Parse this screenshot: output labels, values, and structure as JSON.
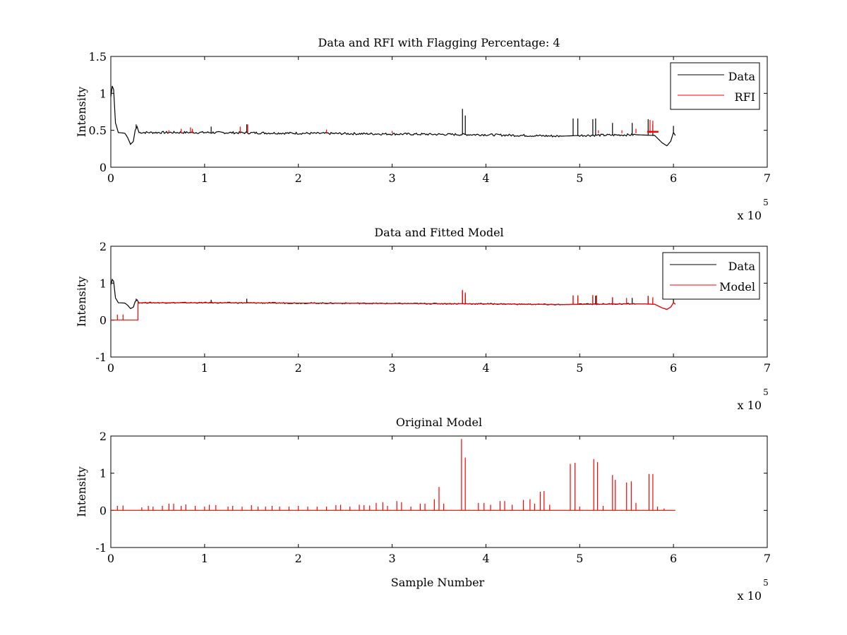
{
  "figure": {
    "background": "#ffffff",
    "colors": {
      "data": "#000000",
      "red": "#ff0000",
      "axes": "#000000"
    }
  },
  "chart_data": [
    {
      "type": "line",
      "title": "Data and RFI with Flagging Percentage: 4",
      "xlabel": "",
      "ylabel": "Intensity",
      "xlim": [
        0,
        700000
      ],
      "ylim": [
        0,
        1.5
      ],
      "x_ticks": [
        "0",
        "1",
        "2",
        "3",
        "4",
        "5",
        "6",
        "7"
      ],
      "y_ticks": [
        "0",
        "0.5",
        "1",
        "1.5"
      ],
      "x_multiplier": {
        "base": "x 10",
        "exponent": "5"
      },
      "grid": false,
      "legend": {
        "position": "top-right",
        "entries": [
          "Data",
          "RFI"
        ]
      },
      "series": [
        {
          "name": "Data",
          "color": "#000000",
          "baseline": [
            [
              0,
              0.95
            ],
            [
              1500,
              1.1
            ],
            [
              3000,
              1.05
            ],
            [
              5000,
              0.6
            ],
            [
              8000,
              0.47
            ],
            [
              15000,
              0.46
            ],
            [
              18000,
              0.4
            ],
            [
              21000,
              0.31
            ],
            [
              24000,
              0.35
            ],
            [
              26000,
              0.5
            ],
            [
              28000,
              0.55
            ],
            [
              30000,
              0.47
            ],
            [
              100000,
              0.47
            ],
            [
              200000,
              0.46
            ],
            [
              300000,
              0.45
            ],
            [
              400000,
              0.44
            ],
            [
              480000,
              0.42
            ],
            [
              500000,
              0.43
            ],
            [
              560000,
              0.44
            ],
            [
              580000,
              0.43
            ],
            [
              588000,
              0.33
            ],
            [
              593000,
              0.29
            ],
            [
              597000,
              0.35
            ],
            [
              600000,
              0.47
            ],
            [
              602000,
              0.43
            ]
          ],
          "spikes": [
            [
              27000,
              0.58
            ],
            [
              107000,
              0.55
            ],
            [
              145000,
              0.58
            ],
            [
              375000,
              0.79
            ],
            [
              378000,
              0.7
            ],
            [
              493000,
              0.66
            ],
            [
              498000,
              0.66
            ],
            [
              514000,
              0.65
            ],
            [
              517000,
              0.66
            ],
            [
              535000,
              0.6
            ],
            [
              556000,
              0.6
            ],
            [
              573000,
              0.65
            ],
            [
              578000,
              0.58
            ],
            [
              600000,
              0.56
            ]
          ]
        },
        {
          "name": "RFI",
          "color": "#ff0000",
          "spikes": [
            [
              62000,
              0.5
            ],
            [
              75000,
              0.52
            ],
            [
              85000,
              0.54
            ],
            [
              87000,
              0.52
            ],
            [
              138000,
              0.55
            ],
            [
              146000,
              0.58
            ],
            [
              230000,
              0.51
            ],
            [
              300000,
              0.49
            ],
            [
              520000,
              0.5
            ],
            [
              545000,
              0.5
            ],
            [
              560000,
              0.52
            ],
            [
              575000,
              0.64
            ],
            [
              578000,
              0.63
            ]
          ],
          "segments": [
            [
              572000,
              584000,
              0.48
            ]
          ]
        }
      ]
    },
    {
      "type": "line",
      "title": "Data and Fitted Model",
      "xlabel": "",
      "ylabel": "Intensity",
      "xlim": [
        0,
        700000
      ],
      "ylim": [
        -1,
        2
      ],
      "x_ticks": [
        "0",
        "1",
        "2",
        "3",
        "4",
        "5",
        "6",
        "7"
      ],
      "y_ticks": [
        "-1",
        "0",
        "1",
        "2"
      ],
      "x_multiplier": {
        "base": "x 10",
        "exponent": "5"
      },
      "grid": false,
      "legend": {
        "position": "top-right",
        "entries": [
          "Data",
          "Model"
        ]
      },
      "series": [
        {
          "name": "Data",
          "color": "#000000",
          "baseline": [
            [
              0,
              0.95
            ],
            [
              1500,
              1.1
            ],
            [
              3000,
              1.05
            ],
            [
              5000,
              0.6
            ],
            [
              8000,
              0.47
            ],
            [
              15000,
              0.46
            ],
            [
              18000,
              0.4
            ],
            [
              21000,
              0.31
            ],
            [
              24000,
              0.35
            ],
            [
              26000,
              0.5
            ],
            [
              28000,
              0.55
            ],
            [
              30000,
              0.47
            ],
            [
              100000,
              0.47
            ],
            [
              200000,
              0.46
            ],
            [
              300000,
              0.45
            ],
            [
              400000,
              0.44
            ],
            [
              480000,
              0.42
            ],
            [
              500000,
              0.43
            ],
            [
              560000,
              0.44
            ],
            [
              580000,
              0.43
            ],
            [
              588000,
              0.33
            ],
            [
              593000,
              0.29
            ],
            [
              597000,
              0.35
            ],
            [
              600000,
              0.47
            ],
            [
              602000,
              0.43
            ]
          ],
          "spikes": [
            [
              27000,
              0.58
            ],
            [
              107000,
              0.55
            ],
            [
              145000,
              0.58
            ],
            [
              375000,
              0.79
            ],
            [
              378000,
              0.7
            ],
            [
              493000,
              0.66
            ],
            [
              498000,
              0.66
            ],
            [
              514000,
              0.65
            ],
            [
              517000,
              0.66
            ],
            [
              535000,
              0.6
            ],
            [
              556000,
              0.6
            ],
            [
              573000,
              0.65
            ],
            [
              578000,
              0.58
            ],
            [
              600000,
              0.56
            ]
          ]
        },
        {
          "name": "Model",
          "color": "#ff0000",
          "baseline": [
            [
              0,
              0.0
            ],
            [
              29000,
              0.0
            ],
            [
              29000,
              0.47
            ],
            [
              100000,
              0.47
            ],
            [
              200000,
              0.46
            ],
            [
              300000,
              0.45
            ],
            [
              400000,
              0.44
            ],
            [
              480000,
              0.42
            ],
            [
              560000,
              0.44
            ],
            [
              580000,
              0.43
            ],
            [
              588000,
              0.33
            ],
            [
              593000,
              0.29
            ],
            [
              597000,
              0.35
            ],
            [
              600000,
              0.47
            ],
            [
              602000,
              0.43
            ]
          ],
          "spikes": [
            [
              7000,
              0.15
            ],
            [
              13000,
              0.15
            ],
            [
              375000,
              0.82
            ],
            [
              378000,
              0.75
            ],
            [
              493000,
              0.67
            ],
            [
              498000,
              0.67
            ],
            [
              514000,
              0.68
            ],
            [
              518000,
              0.67
            ],
            [
              535000,
              0.62
            ],
            [
              550000,
              0.6
            ],
            [
              573000,
              0.66
            ],
            [
              578000,
              0.62
            ]
          ]
        }
      ]
    },
    {
      "type": "line",
      "title": "Original Model",
      "xlabel": "Sample Number",
      "ylabel": "Intensity",
      "xlim": [
        0,
        700000
      ],
      "ylim": [
        -1,
        2
      ],
      "x_ticks": [
        "0",
        "1",
        "2",
        "3",
        "4",
        "5",
        "6",
        "7"
      ],
      "y_ticks": [
        "-1",
        "0",
        "1",
        "2"
      ],
      "x_multiplier": {
        "base": "x 10",
        "exponent": "5"
      },
      "grid": false,
      "legend": null,
      "series": [
        {
          "name": "",
          "color": "#ff0000",
          "baseline": [
            [
              0,
              0.0
            ],
            [
              602000,
              0.0
            ]
          ],
          "spikes": [
            [
              7000,
              0.12
            ],
            [
              13000,
              0.13
            ],
            [
              33000,
              0.08
            ],
            [
              40000,
              0.12
            ],
            [
              45000,
              0.1
            ],
            [
              55000,
              0.12
            ],
            [
              62000,
              0.18
            ],
            [
              67000,
              0.18
            ],
            [
              75000,
              0.12
            ],
            [
              80000,
              0.16
            ],
            [
              90000,
              0.12
            ],
            [
              100000,
              0.1
            ],
            [
              105000,
              0.15
            ],
            [
              112000,
              0.14
            ],
            [
              125000,
              0.1
            ],
            [
              130000,
              0.12
            ],
            [
              140000,
              0.1
            ],
            [
              150000,
              0.14
            ],
            [
              157000,
              0.1
            ],
            [
              165000,
              0.1
            ],
            [
              172000,
              0.12
            ],
            [
              180000,
              0.1
            ],
            [
              190000,
              0.1
            ],
            [
              200000,
              0.12
            ],
            [
              210000,
              0.1
            ],
            [
              220000,
              0.1
            ],
            [
              230000,
              0.1
            ],
            [
              240000,
              0.14
            ],
            [
              245000,
              0.15
            ],
            [
              255000,
              0.1
            ],
            [
              265000,
              0.15
            ],
            [
              270000,
              0.14
            ],
            [
              276000,
              0.13
            ],
            [
              283000,
              0.2
            ],
            [
              290000,
              0.22
            ],
            [
              295000,
              0.12
            ],
            [
              305000,
              0.25
            ],
            [
              310000,
              0.22
            ],
            [
              320000,
              0.1
            ],
            [
              330000,
              0.18
            ],
            [
              335000,
              0.18
            ],
            [
              345000,
              0.3
            ],
            [
              350000,
              0.63
            ],
            [
              355000,
              0.18
            ],
            [
              374000,
              1.92
            ],
            [
              378000,
              1.42
            ],
            [
              392000,
              0.2
            ],
            [
              398000,
              0.2
            ],
            [
              405000,
              0.15
            ],
            [
              415000,
              0.25
            ],
            [
              420000,
              0.25
            ],
            [
              428000,
              0.15
            ],
            [
              440000,
              0.28
            ],
            [
              447000,
              0.3
            ],
            [
              452000,
              0.18
            ],
            [
              458000,
              0.5
            ],
            [
              462000,
              0.52
            ],
            [
              468000,
              0.15
            ],
            [
              490000,
              1.25
            ],
            [
              495000,
              1.28
            ],
            [
              500000,
              0.1
            ],
            [
              515000,
              1.38
            ],
            [
              519000,
              1.3
            ],
            [
              525000,
              0.12
            ],
            [
              535000,
              0.95
            ],
            [
              538000,
              0.82
            ],
            [
              550000,
              0.75
            ],
            [
              555000,
              0.78
            ],
            [
              560000,
              0.2
            ],
            [
              574000,
              0.98
            ],
            [
              578000,
              0.98
            ],
            [
              583000,
              0.1
            ],
            [
              590000,
              0.05
            ]
          ]
        }
      ]
    }
  ]
}
